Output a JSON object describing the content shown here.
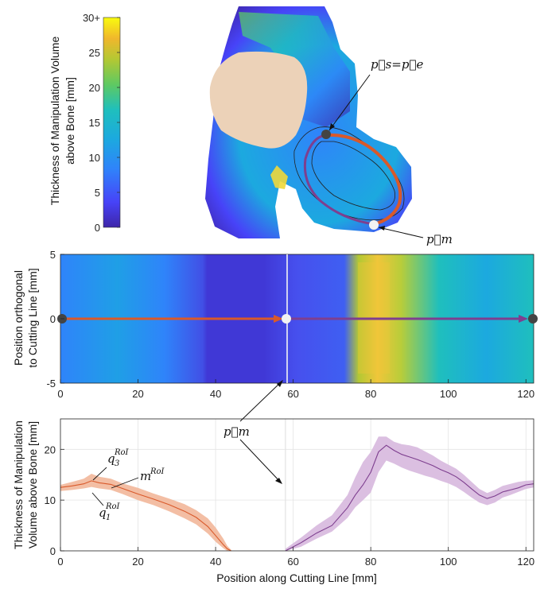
{
  "colors": {
    "gradient_parula": [
      "#3e26a8",
      "#4743f8",
      "#2f84fa",
      "#1ca9df",
      "#1fbfbd",
      "#5ec962",
      "#b3c833",
      "#f0b72c",
      "#f9fb0e"
    ],
    "orange_line": "#d9592a",
    "orange_fill": "#f2b79a",
    "purple_line": "#7e3f8f",
    "purple_fill": "#d7b8de",
    "bone_fill": "#ecd2b8",
    "marker_dark": "#444444",
    "marker_light": "#f2f2f2"
  },
  "colorbar": {
    "label_line1": "Thickness of Manipulation Volume",
    "label_line2": "above Bone [mm]",
    "ticks": [
      "0",
      "5",
      "10",
      "15",
      "20",
      "25",
      "30+"
    ],
    "range": [
      0,
      30
    ]
  },
  "top_image": {
    "label_ps_pe": "p⃗s=p⃗e",
    "label_pm": "p⃗m"
  },
  "middle_plot": {
    "ylabel_line1": "Position orthogonal",
    "ylabel_line2": "to Cutting Line [mm]",
    "yticks": [
      "5",
      "0",
      "-5"
    ],
    "xticks": [
      "0",
      "20",
      "40",
      "60",
      "80",
      "100",
      "120"
    ]
  },
  "chart_data": {
    "type": "line",
    "xlabel": "Position along Cutting Line [mm]",
    "ylabel": "Thickness of Manipulation Volume above Bone [mm]",
    "xlim": [
      0,
      122
    ],
    "ylim": [
      0,
      26
    ],
    "xticks": [
      "0",
      "20",
      "40",
      "60",
      "80",
      "100",
      "120"
    ],
    "yticks": [
      "0",
      "10",
      "20"
    ],
    "grid": true,
    "pm_x": 58,
    "annotations": {
      "q3": "q",
      "q3_sub": "3",
      "q3_sup": "RoI",
      "m": "m",
      "m_sup": "RoI",
      "q1": "q",
      "q1_sub": "1",
      "q1_sup": "RoI",
      "pm": "p⃗m"
    },
    "series": [
      {
        "color_key": "orange",
        "x": [
          0,
          3,
          6,
          8,
          10,
          13,
          16,
          20,
          24,
          28,
          32,
          35,
          38,
          40,
          42,
          43,
          44
        ],
        "median": [
          12.5,
          12.8,
          13.2,
          13.8,
          13.4,
          13.1,
          12.3,
          11.2,
          10.2,
          9.1,
          7.8,
          6.6,
          4.8,
          3.0,
          1.2,
          0.4,
          0.0
        ],
        "q1": [
          11.8,
          12.0,
          12.3,
          12.6,
          12.3,
          12.0,
          11.2,
          10.0,
          9.0,
          7.8,
          6.4,
          5.2,
          3.4,
          1.8,
          0.5,
          0.0,
          0.0
        ],
        "q3": [
          13.0,
          13.6,
          14.2,
          15.2,
          14.6,
          14.2,
          13.3,
          12.4,
          11.3,
          10.3,
          9.2,
          8.0,
          6.4,
          4.6,
          2.4,
          1.0,
          0.2
        ]
      },
      {
        "color_key": "purple",
        "x": [
          58,
          62,
          66,
          70,
          74,
          76,
          78,
          80,
          82,
          84,
          86,
          88,
          90,
          92,
          94,
          96,
          98,
          100,
          102,
          104,
          106,
          108,
          110,
          112,
          114,
          116,
          118,
          120,
          122
        ],
        "median": [
          0.0,
          1.6,
          3.5,
          5.0,
          8.5,
          11.0,
          13.0,
          15.5,
          19.5,
          20.8,
          19.8,
          19.0,
          18.5,
          18.0,
          17.4,
          16.8,
          16.0,
          15.4,
          14.6,
          13.5,
          12.2,
          11.0,
          10.3,
          10.8,
          11.6,
          12.0,
          12.4,
          13.0,
          13.2
        ],
        "q1": [
          0.0,
          0.8,
          2.4,
          3.8,
          6.5,
          8.6,
          10.0,
          11.5,
          15.5,
          17.8,
          17.2,
          16.4,
          15.8,
          15.3,
          14.8,
          14.4,
          13.8,
          13.3,
          12.6,
          11.6,
          10.5,
          9.5,
          9.0,
          9.5,
          10.5,
          11.0,
          11.6,
          12.2,
          12.5
        ],
        "q3": [
          0.4,
          2.6,
          5.0,
          7.0,
          11.0,
          14.5,
          17.5,
          19.5,
          22.5,
          22.5,
          21.5,
          21.0,
          20.8,
          20.4,
          19.6,
          18.8,
          17.8,
          17.0,
          16.2,
          15.0,
          13.6,
          12.2,
          11.4,
          12.0,
          12.8,
          13.2,
          13.6,
          13.8,
          13.9
        ]
      }
    ]
  }
}
